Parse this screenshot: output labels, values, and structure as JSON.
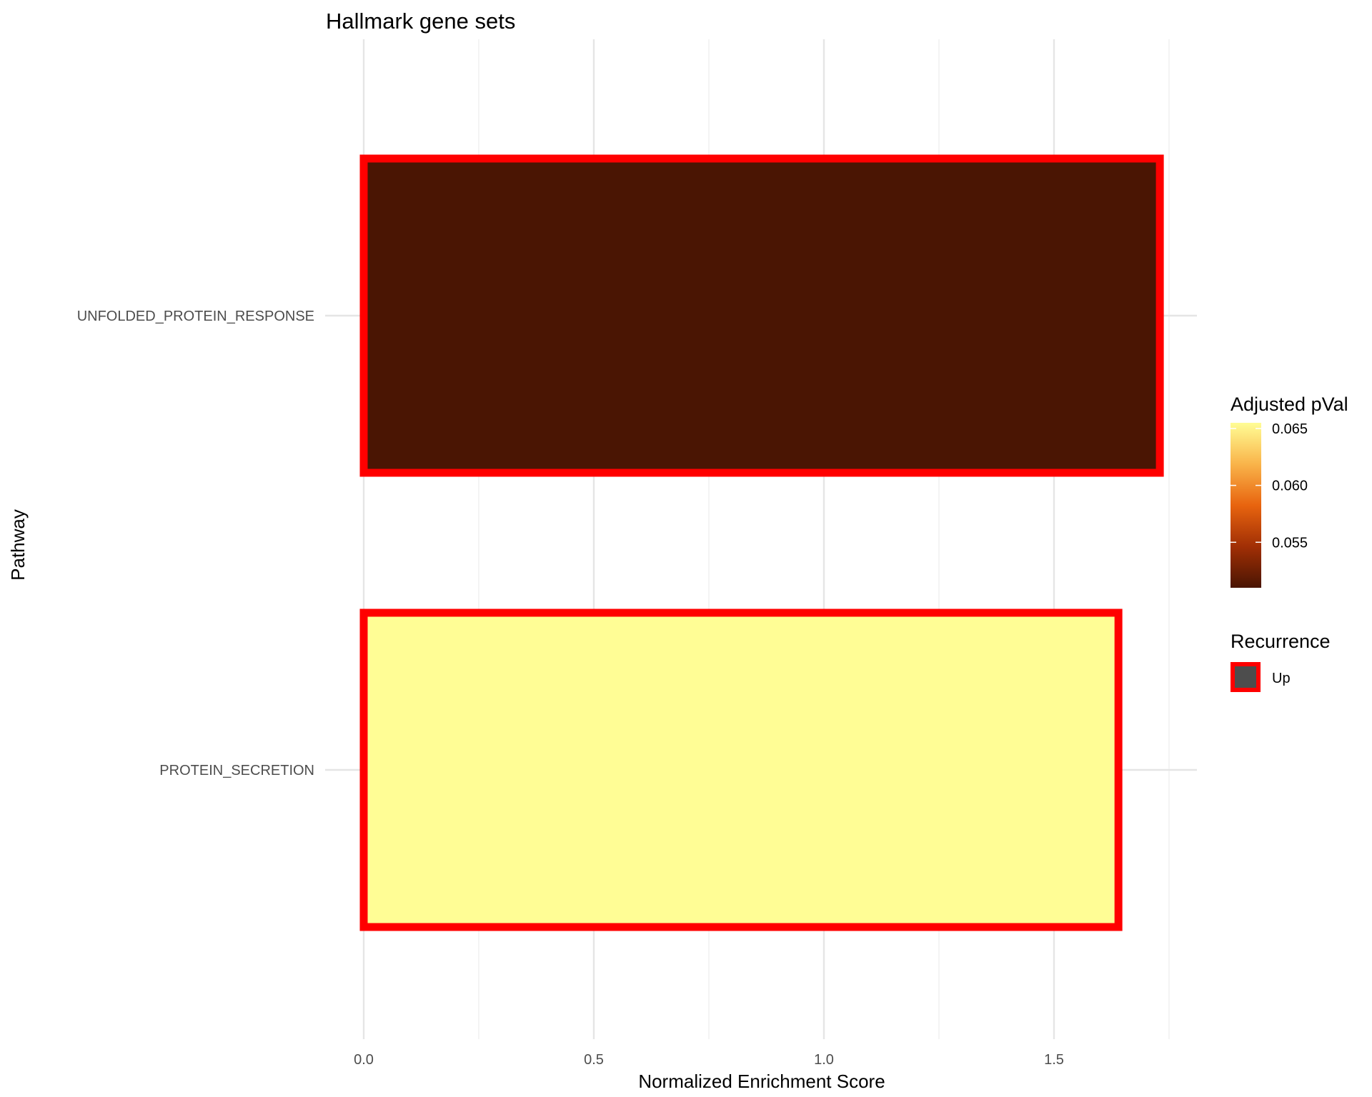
{
  "chart_data": {
    "type": "bar",
    "orientation": "horizontal",
    "title": "Hallmark gene sets",
    "xlabel": "Normalized Enrichment Score",
    "ylabel": "Pathway",
    "xlim": [
      0,
      1.75
    ],
    "x_ticks": [
      "0.0",
      "0.5",
      "1.0",
      "1.5"
    ],
    "x_tick_values": [
      0,
      0.5,
      1.0,
      1.5
    ],
    "grid": true,
    "categories": [
      "UNFOLDED_PROTEIN_RESPONSE",
      "PROTEIN_SECRETION"
    ],
    "values": [
      1.73,
      1.64
    ],
    "fill_values": [
      0.051,
      0.0655
    ],
    "bar_fill_colors": [
      "#4a1503",
      "#fffd95"
    ],
    "bar_outline_color": "#ff0000",
    "legend_placement": "right",
    "legends": {
      "fill": {
        "title": "Adjusted pVal",
        "ticks": [
          "0.065",
          "0.060",
          "0.055"
        ],
        "tick_values": [
          0.065,
          0.06,
          0.055
        ],
        "range": [
          0.051,
          0.0655
        ],
        "colors": [
          "#4a1503",
          "#a12f05",
          "#e8640f",
          "#f9b44a",
          "#fffd95"
        ]
      },
      "outline": {
        "title": "Recurrence",
        "items": [
          {
            "label": "Up",
            "fill": "#4d4d4d",
            "outline": "#ff0000"
          }
        ]
      }
    }
  }
}
